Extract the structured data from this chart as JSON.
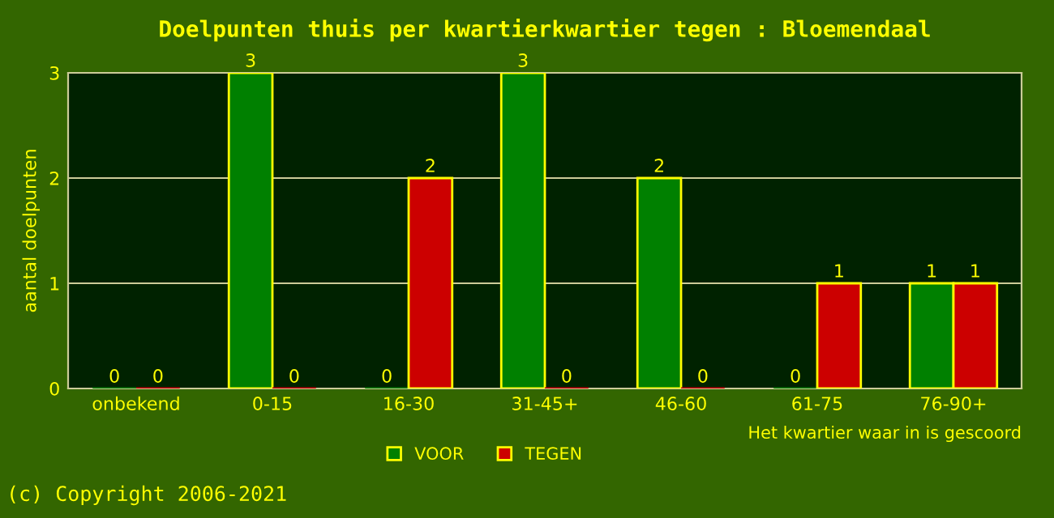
{
  "chart_data": {
    "type": "bar",
    "title": "Doelpunten thuis per kwartierkwartier tegen : Bloemendaal",
    "xlabel": "Het kwartier waar in is gescoord",
    "ylabel": "aantal doelpunten",
    "categories": [
      "onbekend",
      "0-15",
      "16-30",
      "31-45+",
      "46-60",
      "61-75",
      "76-90+"
    ],
    "series": [
      {
        "name": "VOOR",
        "color": "#008000",
        "values": [
          0,
          3,
          0,
          3,
          2,
          0,
          1
        ]
      },
      {
        "name": "TEGEN",
        "color": "#cc0000",
        "values": [
          0,
          0,
          2,
          0,
          0,
          1,
          1
        ]
      }
    ],
    "ylim": [
      0,
      3
    ],
    "yticks": [
      0,
      1,
      2,
      3
    ],
    "grid": "y",
    "legend": "bottom",
    "data_labels": true,
    "annotations": [
      "(c) Copyright 2006-2021"
    ]
  }
}
